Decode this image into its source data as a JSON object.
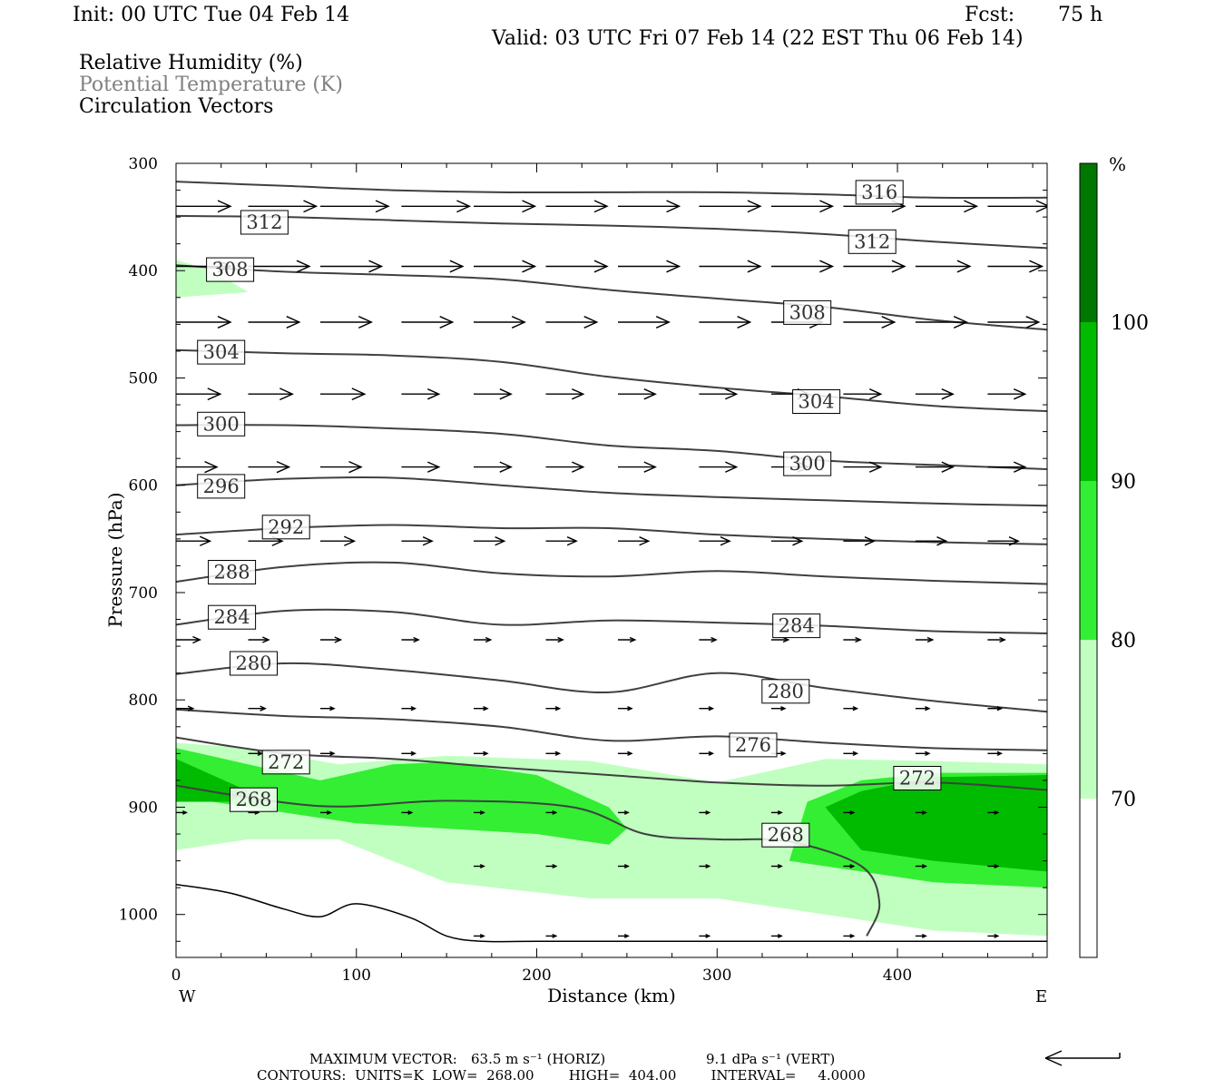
{
  "header": {
    "init": "Init: 00 UTC Tue 04 Feb 14",
    "fcst_label": "Fcst:",
    "fcst_value": "75 h",
    "valid": "Valid: 03 UTC Fri 07 Feb 14 (22 EST Thu 06 Feb 14)",
    "fields": [
      "Relative Humidity (%)",
      "Potential Temperature (K)",
      "Circulation Vectors"
    ]
  },
  "chart_data": {
    "type": "cross-section",
    "xlabel": "Distance (km)",
    "ylabel": "Pressure (hPa)",
    "xlim": [
      0,
      483
    ],
    "ylim": [
      300,
      1040
    ],
    "y_scale": "linear, inverted",
    "x_ticks": [
      0,
      100,
      200,
      300,
      400
    ],
    "y_ticks": [
      300,
      400,
      500,
      600,
      700,
      800,
      900,
      1000
    ],
    "x_end_labels": {
      "left": "W",
      "right": "E"
    },
    "colorbar": {
      "unit": "%",
      "levels": [
        70,
        80,
        90,
        100
      ],
      "colors": [
        "#ffffff",
        "#c0ffc0",
        "#33ee33",
        "#00bb00",
        "#007700"
      ]
    },
    "theta_isentropes": [
      {
        "label": "316",
        "x": [
          0,
          60,
          120,
          180,
          240,
          300,
          360,
          420,
          483
        ],
        "p": [
          317,
          321,
          325,
          327,
          327,
          327,
          329,
          332,
          332
        ]
      },
      {
        "label": "312",
        "x": [
          0,
          60,
          120,
          180,
          240,
          300,
          360,
          420,
          483
        ],
        "p": [
          349,
          350,
          353,
          356,
          358,
          361,
          366,
          373,
          379
        ]
      },
      {
        "label": "308",
        "x": [
          0,
          60,
          120,
          180,
          240,
          300,
          360,
          420,
          483
        ],
        "p": [
          395,
          401,
          404,
          408,
          418,
          426,
          434,
          446,
          455
        ]
      },
      {
        "label": "304",
        "x": [
          0,
          60,
          120,
          180,
          240,
          300,
          360,
          420,
          483
        ],
        "p": [
          474,
          477,
          479,
          485,
          499,
          509,
          517,
          526,
          531
        ]
      },
      {
        "label": "300",
        "x": [
          0,
          60,
          120,
          180,
          240,
          300,
          360,
          420,
          483
        ],
        "p": [
          544,
          544,
          547,
          552,
          563,
          568,
          577,
          581,
          585
        ]
      },
      {
        "label": "296",
        "x": [
          0,
          60,
          120,
          180,
          240,
          300,
          360,
          420,
          483
        ],
        "p": [
          600,
          594,
          593,
          600,
          607,
          611,
          614,
          617,
          619
        ]
      },
      {
        "label": "292",
        "x": [
          0,
          60,
          120,
          180,
          240,
          300,
          360,
          420,
          483
        ],
        "p": [
          646,
          640,
          637,
          640,
          640,
          646,
          650,
          653,
          655
        ]
      },
      {
        "label": "288",
        "x": [
          0,
          60,
          120,
          180,
          240,
          300,
          360,
          420,
          483
        ],
        "p": [
          690,
          676,
          672,
          682,
          685,
          680,
          685,
          689,
          692
        ]
      },
      {
        "label": "284",
        "x": [
          0,
          60,
          120,
          180,
          240,
          300,
          360,
          420,
          483
        ],
        "p": [
          730,
          717,
          718,
          730,
          726,
          728,
          731,
          736,
          738
        ]
      },
      {
        "label": "280",
        "x": [
          0,
          60,
          120,
          180,
          240,
          300,
          360,
          420,
          483
        ],
        "p": [
          776,
          766,
          772,
          782,
          793,
          775,
          789,
          801,
          811
        ]
      },
      {
        "label": "276",
        "x": [
          0,
          60,
          120,
          180,
          240,
          300,
          360,
          420,
          483
        ],
        "p": [
          809,
          815,
          818,
          825,
          838,
          834,
          840,
          845,
          847
        ]
      },
      {
        "label": "272",
        "x": [
          0,
          60,
          120,
          180,
          240,
          300,
          360,
          420,
          483
        ],
        "p": [
          835,
          850,
          855,
          863,
          870,
          877,
          880,
          877,
          884
        ]
      },
      {
        "label": "268",
        "x": [
          0,
          80,
          150,
          220,
          260,
          300,
          340,
          380,
          390,
          383
        ],
        "p": [
          880,
          899,
          894,
          900,
          925,
          930,
          932,
          955,
          990,
          1020
        ]
      }
    ],
    "label_positions": [
      {
        "text": "316",
        "x": 390,
        "p": 327
      },
      {
        "text": "312",
        "x": 49,
        "p": 355
      },
      {
        "text": "312",
        "x": 386,
        "p": 373
      },
      {
        "text": "308",
        "x": 30,
        "p": 399
      },
      {
        "text": "308",
        "x": 350,
        "p": 439
      },
      {
        "text": "304",
        "x": 25,
        "p": 476
      },
      {
        "text": "304",
        "x": 355,
        "p": 522
      },
      {
        "text": "300",
        "x": 25,
        "p": 543
      },
      {
        "text": "300",
        "x": 350,
        "p": 580
      },
      {
        "text": "296",
        "x": 25,
        "p": 601
      },
      {
        "text": "292",
        "x": 61,
        "p": 639
      },
      {
        "text": "288",
        "x": 31,
        "p": 681
      },
      {
        "text": "284",
        "x": 31,
        "p": 723
      },
      {
        "text": "284",
        "x": 344,
        "p": 731
      },
      {
        "text": "280",
        "x": 43,
        "p": 766
      },
      {
        "text": "280",
        "x": 338,
        "p": 792
      },
      {
        "text": "276",
        "x": 320,
        "p": 842
      },
      {
        "text": "272",
        "x": 61,
        "p": 858
      },
      {
        "text": "272",
        "x": 411,
        "p": 873
      },
      {
        "text": "268",
        "x": 43,
        "p": 893
      },
      {
        "text": "268",
        "x": 338,
        "p": 926
      }
    ],
    "rh_regions": [
      {
        "level": 70,
        "x": [
          0,
          40,
          90,
          150,
          230,
          300,
          360,
          420,
          483,
          483,
          420,
          360,
          300,
          230,
          150,
          90,
          40,
          0
        ],
        "p": [
          840,
          845,
          860,
          852,
          857,
          877,
          855,
          857,
          860,
          1020,
          1015,
          1000,
          985,
          985,
          970,
          930,
          930,
          940
        ]
      },
      {
        "level": 70,
        "x": [
          0,
          20,
          40,
          0
        ],
        "p": [
          390,
          400,
          420,
          425
        ]
      },
      {
        "level": 80,
        "x": [
          0,
          40,
          80,
          120,
          150,
          200,
          240,
          250,
          240,
          200,
          150,
          100,
          60,
          20,
          0
        ],
        "p": [
          845,
          860,
          875,
          860,
          858,
          870,
          900,
          920,
          935,
          925,
          920,
          915,
          905,
          895,
          890
        ]
      },
      {
        "level": 80,
        "x": [
          350,
          380,
          420,
          483,
          483,
          420,
          380,
          340
        ],
        "p": [
          895,
          875,
          868,
          868,
          975,
          970,
          960,
          950
        ]
      },
      {
        "level": 90,
        "x": [
          0,
          20,
          40,
          30,
          0
        ],
        "p": [
          855,
          870,
          885,
          895,
          895
        ]
      },
      {
        "level": 90,
        "x": [
          360,
          380,
          420,
          483,
          483,
          420,
          380
        ],
        "p": [
          900,
          885,
          872,
          870,
          960,
          950,
          940
        ]
      }
    ],
    "wind_vectors": [
      {
        "p": 340,
        "x": [
          0,
          40,
          80,
          125,
          165,
          205,
          245,
          290,
          330,
          370,
          410,
          450
        ],
        "u": [
          0.8,
          1,
          1,
          1,
          0.9,
          0.9,
          0.9,
          0.9,
          0.9,
          0.9,
          0.9,
          0.9
        ],
        "w": [
          0,
          0,
          0,
          0,
          0,
          0,
          0,
          0,
          0,
          0,
          0,
          0
        ]
      },
      {
        "p": 396,
        "x": [
          0,
          40,
          80,
          125,
          165,
          205,
          245,
          290,
          330,
          370,
          410,
          450
        ],
        "u": [
          0.8,
          0.9,
          0.9,
          0.9,
          0.9,
          0.9,
          0.9,
          0.9,
          0.9,
          0.9,
          0.8,
          0.8
        ],
        "w": [
          0,
          0,
          0,
          0,
          0,
          0,
          0,
          0,
          0,
          0,
          0,
          0
        ]
      },
      {
        "p": 448,
        "x": [
          0,
          40,
          80,
          125,
          165,
          205,
          245,
          290,
          330,
          370,
          410,
          450
        ],
        "u": [
          0.8,
          0.75,
          0.75,
          0.75,
          0.75,
          0.75,
          0.75,
          0.75,
          0.75,
          0.75,
          0.75,
          0.75
        ],
        "w": [
          0,
          0,
          0,
          0,
          0,
          0,
          0,
          0,
          0,
          0,
          0,
          0
        ]
      },
      {
        "p": 515,
        "x": [
          0,
          40,
          80,
          125,
          165,
          205,
          245,
          290,
          330,
          370,
          410,
          450
        ],
        "u": [
          0.65,
          0.65,
          0.65,
          0.55,
          0.55,
          0.55,
          0.55,
          0.55,
          0.55,
          0.55,
          0.55,
          0.55
        ],
        "w": [
          0,
          0,
          0,
          0,
          0,
          0,
          0,
          0,
          0,
          0,
          0,
          0
        ]
      },
      {
        "p": 583,
        "x": [
          0,
          40,
          80,
          125,
          165,
          205,
          245,
          290,
          330,
          370,
          410,
          450
        ],
        "u": [
          0.6,
          0.6,
          0.6,
          0.55,
          0.55,
          0.55,
          0.55,
          0.55,
          0.55,
          0.55,
          0.55,
          0.55
        ],
        "w": [
          0,
          0,
          0,
          0,
          0,
          0,
          0,
          0,
          0,
          0,
          0,
          0
        ]
      },
      {
        "p": 652,
        "x": [
          0,
          40,
          80,
          125,
          165,
          205,
          245,
          290,
          330,
          370,
          410,
          450
        ],
        "u": [
          0.5,
          0.5,
          0.5,
          0.45,
          0.45,
          0.45,
          0.45,
          0.45,
          0.45,
          0.45,
          0.45,
          0.45
        ],
        "w": [
          0,
          0,
          0,
          0,
          0,
          0,
          0,
          0,
          0,
          0,
          0,
          0
        ]
      },
      {
        "p": 744,
        "x": [
          0,
          40,
          80,
          125,
          165,
          205,
          245,
          290,
          330,
          370,
          410,
          450
        ],
        "u": [
          0.35,
          0.3,
          0.3,
          0.25,
          0.25,
          0.25,
          0.25,
          0.25,
          0.25,
          0.25,
          0.25,
          0.25
        ],
        "w": [
          0,
          0,
          0,
          0,
          0,
          0,
          0,
          0,
          0,
          0,
          0,
          0
        ]
      },
      {
        "p": 808,
        "x": [
          0,
          40,
          80,
          125,
          165,
          205,
          245,
          290,
          330,
          370,
          410,
          450
        ],
        "u": [
          0.25,
          0.25,
          0.2,
          0.2,
          0.2,
          0.2,
          0.2,
          0.2,
          0.2,
          0.2,
          0.2,
          0.2
        ],
        "w": [
          0,
          0,
          0,
          0,
          0,
          0,
          0,
          0,
          0,
          0,
          0,
          0
        ]
      },
      {
        "p": 850,
        "x": [
          40,
          80,
          125,
          165,
          205,
          245,
          290,
          330,
          370,
          410,
          450
        ],
        "u": [
          0.2,
          0.2,
          0.2,
          0.2,
          0.2,
          0.2,
          0.2,
          0.2,
          0.2,
          0.2,
          0.2
        ],
        "w": [
          0,
          0,
          0,
          0,
          0,
          0,
          0,
          0,
          0,
          0,
          0
        ]
      },
      {
        "p": 905,
        "x": [
          0,
          40,
          80,
          125,
          165,
          205,
          245,
          290,
          330,
          370,
          410,
          450
        ],
        "u": [
          0.15,
          0.15,
          0.15,
          0.15,
          0.15,
          0.15,
          0.15,
          0.15,
          0.15,
          0.15,
          0.15,
          0.15
        ],
        "w": [
          0,
          0,
          0,
          0,
          0,
          0,
          0,
          0,
          0,
          0,
          0,
          0
        ]
      },
      {
        "p": 955,
        "x": [
          165,
          205,
          245,
          290,
          330,
          370,
          410,
          450
        ],
        "u": [
          0.15,
          0.15,
          0.15,
          0.15,
          0.15,
          0.15,
          0.15,
          0.15
        ],
        "w": [
          0,
          0,
          0,
          0,
          0,
          0,
          0,
          0
        ]
      },
      {
        "p": 1020,
        "x": [
          165,
          205,
          245,
          290,
          330,
          370,
          410,
          450
        ],
        "u": [
          0.15,
          0.15,
          0.15,
          0.15,
          0.15,
          0.15,
          0.15,
          0.15
        ],
        "w": [
          0,
          0,
          0,
          0,
          0,
          0,
          0,
          0
        ]
      }
    ],
    "terrain": {
      "x": [
        0,
        30,
        60,
        80,
        100,
        130,
        150,
        170,
        200,
        300,
        483
      ],
      "p": [
        972,
        980,
        995,
        1002,
        990,
        1003,
        1020,
        1025,
        1025,
        1025,
        1025
      ]
    }
  },
  "footer": {
    "max_vector_label": "MAXIMUM VECTOR:",
    "max_vector_horiz": "63.5 m s⁻¹ (HORIZ)",
    "max_vector_vert": "9.1 dPa s⁻¹ (VERT)",
    "contours_line": "CONTOURS:  UNITS=K  LOW=  268.00        HIGH=  404.00        INTERVAL=     4.0000"
  }
}
